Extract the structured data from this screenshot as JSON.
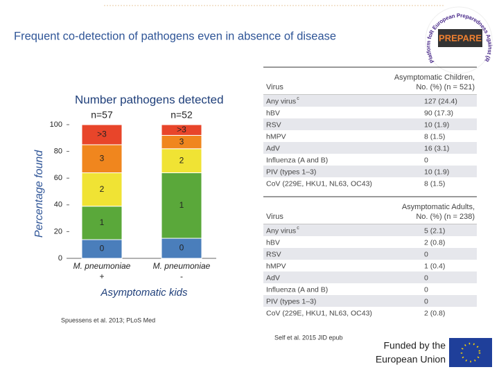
{
  "title": "Frequent co-detection of pathogens even in absence of disease",
  "logo": {
    "name": "PREPARE",
    "arc": "Platform foR European Preparedness Against (Re-)emerging Epidemics"
  },
  "chart_data": {
    "type": "stacked-bar",
    "title": "Number pathogens detected",
    "categories": [
      "M. pneumoniae",
      "M. pneumoniae"
    ],
    "category_signs": [
      "+",
      "-"
    ],
    "annotations": [
      "n=57",
      "n=52"
    ],
    "y_label": "Percentage found",
    "x_label": "Asymptomatic kids",
    "series": [
      {
        "name": "0",
        "color": "#4a7ebb",
        "values": [
          14,
          15
        ]
      },
      {
        "name": "1",
        "color": "#5aa83a",
        "values": [
          25,
          49
        ]
      },
      {
        "name": "2",
        "color": "#f0e334",
        "values": [
          25,
          18
        ]
      },
      {
        "name": "3",
        "color": "#f0861e",
        "values": [
          21,
          10
        ]
      },
      {
        "name": ">3",
        "color": "#e8452a",
        "values": [
          15,
          8
        ]
      }
    ],
    "ylim": [
      0,
      100
    ],
    "yticks": [
      0,
      20,
      40,
      60,
      80,
      100
    ]
  },
  "tables": [
    {
      "header": [
        "Virus",
        "Asymptomatic Children,",
        "No. (%) (n = 521)"
      ],
      "rows": [
        [
          "Any virus",
          "127 (24.4)"
        ],
        [
          "hBV",
          "90 (17.3)"
        ],
        [
          "RSV",
          "10 (1.9)"
        ],
        [
          "hMPV",
          "8 (1.5)"
        ],
        [
          "AdV",
          "16 (3.1)"
        ],
        [
          "Influenza (A and B)",
          "0"
        ],
        [
          "PIV (types 1–3)",
          "10 (1.9)"
        ],
        [
          "CoV (229E, HKU1, NL63, OC43)",
          "8 (1.5)"
        ]
      ],
      "sup": "c"
    },
    {
      "header": [
        "Virus",
        "Asymptomatic Adults,",
        "No. (%) (n = 238)"
      ],
      "rows": [
        [
          "Any virus",
          "5 (2.1)"
        ],
        [
          "hBV",
          "2 (0.8)"
        ],
        [
          "RSV",
          "0"
        ],
        [
          "hMPV",
          "1 (0.4)"
        ],
        [
          "AdV",
          "0"
        ],
        [
          "Influenza (A and B)",
          "0"
        ],
        [
          "PIV (types 1–3)",
          "0"
        ],
        [
          "CoV (229E, HKU1, NL63, OC43)",
          "2 (0.8)"
        ]
      ],
      "sup": "c"
    }
  ],
  "citations": [
    "Spuessens et al. 2013; PLoS Med",
    "Self et al. 2015 JID epub"
  ],
  "funding": [
    "Funded by the",
    "European Union"
  ]
}
